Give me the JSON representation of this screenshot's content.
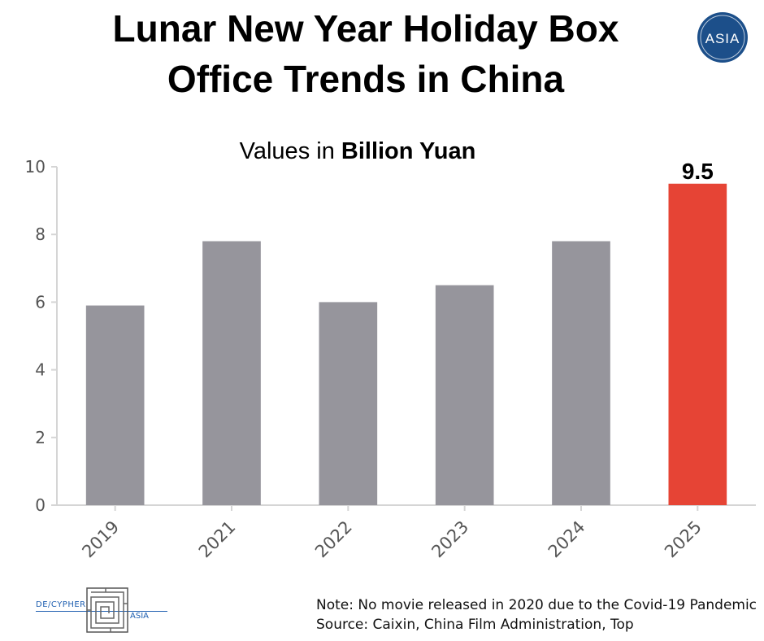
{
  "title_line1": "Lunar New Year Holiday Box",
  "title_line2": "Office Trends in China",
  "subtitle_prefix": "Values in ",
  "subtitle_bold": "Billion Yuan",
  "badge_text": "ASIA",
  "logo": {
    "left": "DE/CYPHER",
    "right": "ASIA"
  },
  "note_line1": "Note: No movie released in 2020 due to the Covid-19 Pandemic",
  "note_line2": "Source: Caixin, China Film Administration, Top",
  "colors": {
    "bar": "#96959c",
    "highlight": "#e64435",
    "badge": "#1c4f8a"
  },
  "chart_data": {
    "type": "bar",
    "categories": [
      "2019",
      "2021",
      "2022",
      "2023",
      "2024",
      "2025"
    ],
    "values": [
      5.9,
      7.8,
      6.0,
      6.5,
      7.8,
      9.5
    ],
    "highlight_index": 5,
    "data_labels": [
      {
        "index": 5,
        "text": "9.5"
      }
    ],
    "ylim": [
      0,
      10
    ],
    "yticks": [
      0,
      2,
      4,
      6,
      8,
      10
    ],
    "grid": false,
    "title": "Values in Billion Yuan",
    "xlabel": "",
    "ylabel": ""
  }
}
